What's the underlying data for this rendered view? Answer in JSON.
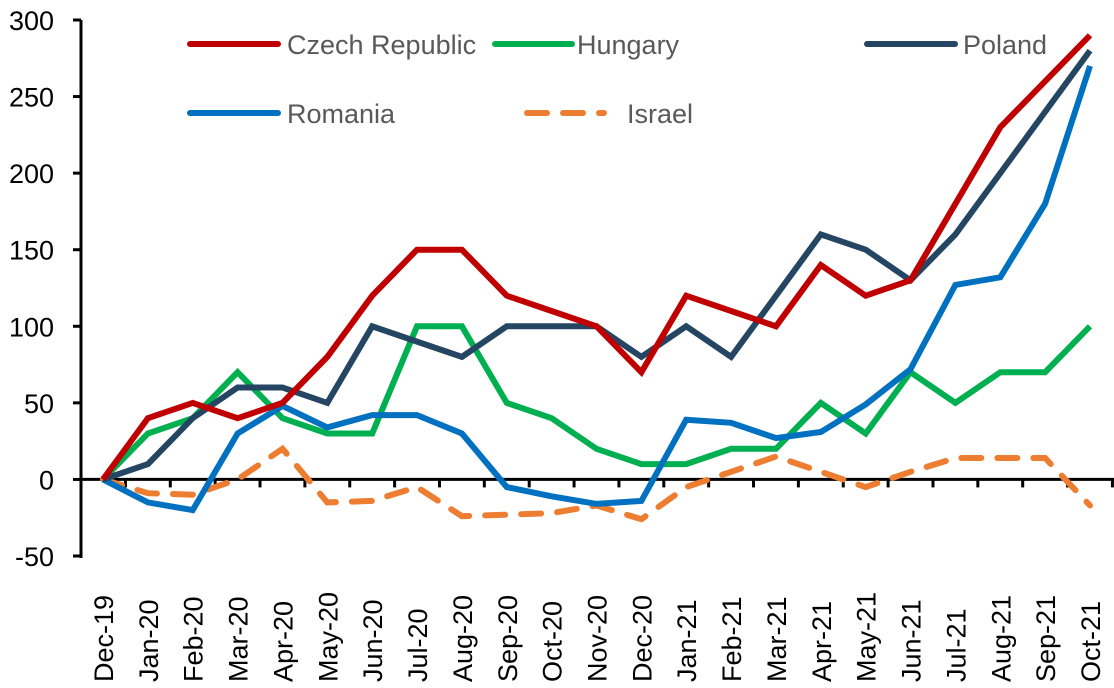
{
  "chart_data": {
    "type": "line",
    "title": "",
    "xlabel": "",
    "ylabel": "",
    "ylim": [
      -50,
      300
    ],
    "yticks": [
      300,
      250,
      200,
      150,
      100,
      50,
      0,
      -50
    ],
    "ytick_labels": [
      "300",
      "250",
      "200",
      "150",
      "100",
      "50",
      "0",
      "-50"
    ],
    "grid": false,
    "legend_position": "top",
    "categories": [
      "Dec-19",
      "Jan-20",
      "Feb-20",
      "Mar-20",
      "Apr-20",
      "May-20",
      "Jun-20",
      "Jul-20",
      "Aug-20",
      "Sep-20",
      "Oct-20",
      "Nov-20",
      "Dec-20",
      "Jan-21",
      "Feb-21",
      "Mar-21",
      "Apr-21",
      "May-21",
      "Jun-21",
      "Jul-21",
      "Aug-21",
      "Sep-21",
      "Oct-21"
    ],
    "series": [
      {
        "name": "Czech Republic",
        "color": "#C00000",
        "dashed": false,
        "values": [
          0,
          40,
          50,
          40,
          50,
          80,
          120,
          150,
          150,
          120,
          110,
          100,
          70,
          120,
          110,
          100,
          140,
          120,
          130,
          180,
          230,
          260,
          290
        ]
      },
      {
        "name": "Hungary",
        "color": "#00B050",
        "dashed": false,
        "values": [
          0,
          30,
          40,
          70,
          40,
          30,
          30,
          100,
          100,
          50,
          40,
          20,
          10,
          10,
          20,
          20,
          50,
          30,
          70,
          50,
          70,
          70,
          100
        ]
      },
      {
        "name": "Poland",
        "color": "#254662",
        "dashed": false,
        "values": [
          0,
          10,
          40,
          60,
          60,
          50,
          100,
          90,
          80,
          100,
          100,
          100,
          80,
          100,
          80,
          120,
          160,
          150,
          130,
          160,
          200,
          240,
          280
        ]
      },
      {
        "name": "Romania",
        "color": "#0070C0",
        "dashed": false,
        "values": [
          0,
          -15,
          -20,
          30,
          48,
          34,
          42,
          42,
          30,
          -5,
          -11,
          -16,
          -14,
          39,
          37,
          27,
          31,
          49,
          72,
          127,
          132,
          180,
          270
        ]
      },
      {
        "name": "Israel",
        "color": "#ED7D31",
        "dashed": true,
        "values": [
          0,
          -9,
          -10,
          0,
          20,
          -15,
          -14,
          -5,
          -24,
          -23,
          -22,
          -17,
          -26,
          -5,
          5,
          15,
          5,
          -5,
          5,
          14,
          14,
          14,
          -17
        ]
      }
    ]
  }
}
